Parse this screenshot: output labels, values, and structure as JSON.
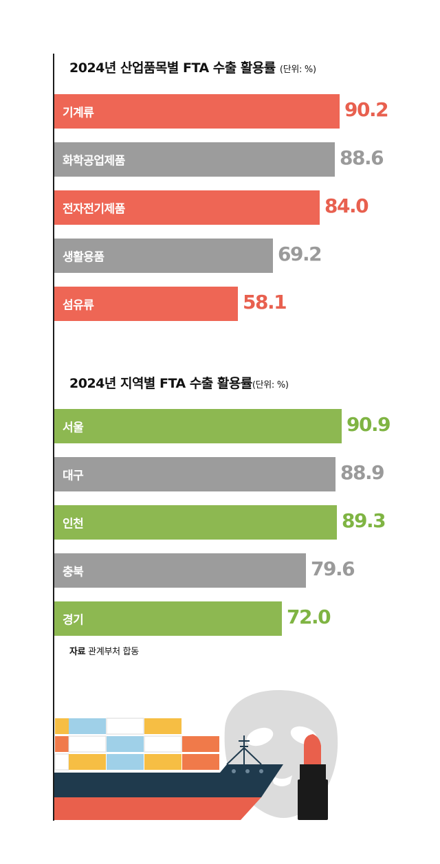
{
  "chart_data": [
    {
      "type": "bar",
      "orientation": "horizontal",
      "title": "2024년 산업품목별 FTA 수출 활용률",
      "unit_label": "(단위: %)",
      "categories": [
        "기계류",
        "화학공업제품",
        "전자전기제품",
        "생활용품",
        "섬유류"
      ],
      "values": [
        90.2,
        88.6,
        84.0,
        69.2,
        58.1
      ],
      "value_labels": [
        "90.2",
        "88.6",
        "84.0",
        "69.2",
        "58.1"
      ],
      "bar_colors": [
        "#EE6655",
        "#9C9C9C",
        "#EE6655",
        "#9C9C9C",
        "#EE6655"
      ],
      "value_colors": [
        "#E8604F",
        "#9A9A9A",
        "#E8604F",
        "#9A9A9A",
        "#E8604F"
      ]
    },
    {
      "type": "bar",
      "orientation": "horizontal",
      "title": "2024년 지역별 FTA 수출 활용률",
      "unit_label": "(단위: %)",
      "categories": [
        "서울",
        "대구",
        "인천",
        "충북",
        "경기"
      ],
      "values": [
        90.9,
        88.9,
        89.3,
        79.6,
        72.0
      ],
      "value_labels": [
        "90.9",
        "88.9",
        "89.3",
        "79.6",
        "72.0"
      ],
      "bar_colors": [
        "#8DB851",
        "#9C9C9C",
        "#8DB851",
        "#9C9C9C",
        "#8DB851"
      ],
      "value_colors": [
        "#7FB443",
        "#9A9A9A",
        "#7FB443",
        "#9A9A9A",
        "#7FB443"
      ]
    }
  ],
  "source": {
    "label": "자료",
    "text": "관계부처 합동"
  },
  "illustration": {
    "icons": [
      "cargo-ship-icon",
      "face-mask-icon",
      "lipstick-icon"
    ]
  }
}
